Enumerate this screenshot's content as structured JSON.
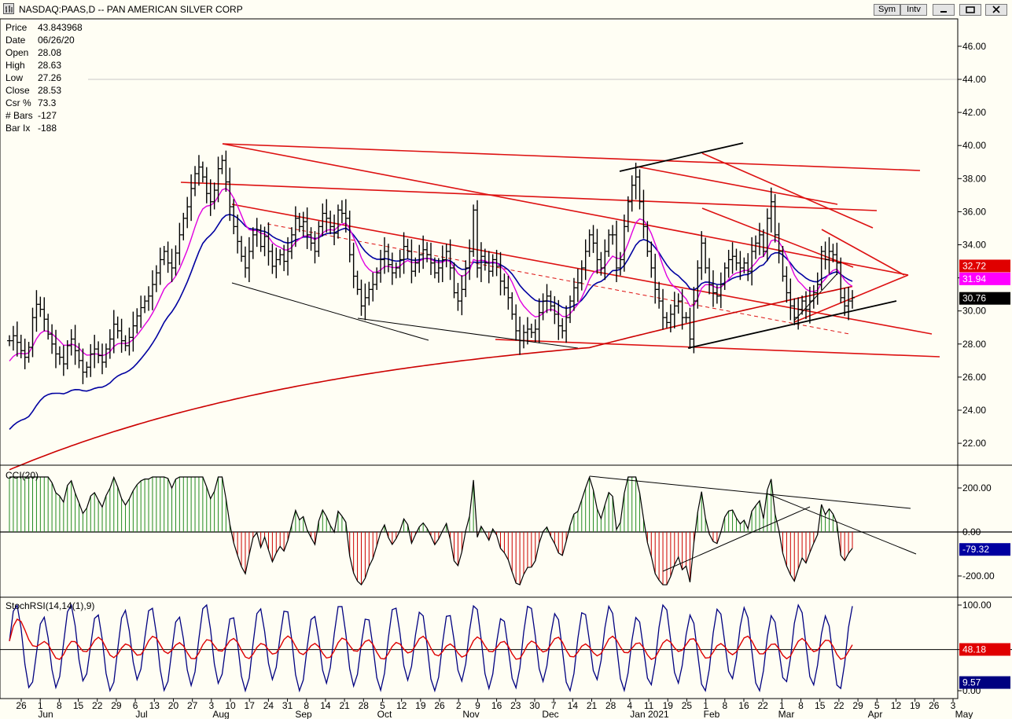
{
  "window": {
    "title": "NASDAQ:PAAS,D -- PAN AMERICAN SILVER CORP",
    "buttons": [
      "Sym",
      "Intv"
    ]
  },
  "info_panel": [
    {
      "label": "Price",
      "value": "43.843968"
    },
    {
      "label": "Date",
      "value": "06/26/20"
    },
    {
      "label": "Open",
      "value": "28.08"
    },
    {
      "label": "High",
      "value": "28.63"
    },
    {
      "label": "Low",
      "value": "27.26"
    },
    {
      "label": "Close",
      "value": "28.53"
    },
    {
      "label": "Csr %",
      "value": "73.3"
    },
    {
      "label": "# Bars",
      "value": "-127"
    },
    {
      "label": "Bar Ix",
      "value": "-188"
    }
  ],
  "colors": {
    "background": "#fffef4",
    "price_bars": "#000000",
    "ma_short": "#e000e0",
    "ma_mid": "#0000a0",
    "ma_long": "#cc0000",
    "trendline_red": "#dd1111",
    "cci_up": "#228b22",
    "cci_down": "#cc0000"
  },
  "chart_data": [
    {
      "type": "line",
      "name": "price",
      "title": "NASDAQ:PAAS,D -- PAN AMERICAN SILVER CORP",
      "ylim": [
        20.5,
        48
      ],
      "y_ticks": [
        "46.00",
        "44.00",
        "42.00",
        "40.00",
        "38.00",
        "36.00",
        "34.00",
        "32.00",
        "30.00",
        "28.00",
        "26.00",
        "24.00",
        "22.00"
      ],
      "value_badges": [
        {
          "label": "32.72",
          "value": 32.72,
          "color": "#e00000"
        },
        {
          "label": "31.94",
          "value": 31.94,
          "color": "#ff00ff"
        },
        {
          "label": "30.76",
          "value": 30.76,
          "color": "#000000"
        }
      ],
      "x_tick_labels": [
        "26",
        "1",
        "8",
        "15",
        "22",
        "29",
        "6",
        "13",
        "20",
        "27",
        "3",
        "10",
        "17",
        "24",
        "31",
        "8",
        "14",
        "21",
        "28",
        "5",
        "12",
        "19",
        "26",
        "2",
        "9",
        "16",
        "23",
        "30",
        "7",
        "14",
        "21",
        "28",
        "4",
        "11",
        "19",
        "25",
        "1",
        "8",
        "16",
        "22",
        "1",
        "8",
        "15",
        "22",
        "29",
        "5",
        "12",
        "19",
        "26",
        "3"
      ],
      "month_labels": [
        "Jun",
        "Jul",
        "Aug",
        "Sep",
        "Oct",
        "Nov",
        "Dec",
        "Jan 2021",
        "Feb",
        "Mar",
        "Apr",
        "May"
      ],
      "closes": [
        28.2,
        28.5,
        28.1,
        27.6,
        27.2,
        27.8,
        29.6,
        30.4,
        30.1,
        29.5,
        28.6,
        28.0,
        27.4,
        27.2,
        26.8,
        27.9,
        28.3,
        27.6,
        27.0,
        26.3,
        26.6,
        27.4,
        27.7,
        27.3,
        26.9,
        27.7,
        28.3,
        29.2,
        28.8,
        28.2,
        27.9,
        28.4,
        29.1,
        29.7,
        30.2,
        30.6,
        30.9,
        31.6,
        32.3,
        33.1,
        33.6,
        32.9,
        32.6,
        33.5,
        34.6,
        35.6,
        36.3,
        37.4,
        38.3,
        38.7,
        38.1,
        37.1,
        36.6,
        37.3,
        38.6,
        39.1,
        37.8,
        36.3,
        35.1,
        34.2,
        33.3,
        32.6,
        33.6,
        34.6,
        34.9,
        33.9,
        34.5,
        33.6,
        32.7,
        33.1,
        33.4,
        33.0,
        33.6,
        34.6,
        35.6,
        35.1,
        35.4,
        34.6,
        34.1,
        33.6,
        35.1,
        35.9,
        35.6,
        35.1,
        34.7,
        36.1,
        35.9,
        35.6,
        33.4,
        32.1,
        31.3,
        30.3,
        30.8,
        31.3,
        31.6,
        32.3,
        33.1,
        33.6,
        32.8,
        32.3,
        32.6,
        33.1,
        33.9,
        33.6,
        32.4,
        32.9,
        33.4,
        33.7,
        33.4,
        32.9,
        32.3,
        32.6,
        33.1,
        33.6,
        32.6,
        31.1,
        30.6,
        31.3,
        32.6,
        33.6,
        36.1,
        32.6,
        33.3,
        32.9,
        32.4,
        33.1,
        32.7,
        31.8,
        31.4,
        30.8,
        29.8,
        28.8,
        28.2,
        28.7,
        28.9,
        28.7,
        28.9,
        29.9,
        30.6,
        30.9,
        30.3,
        29.8,
        29.1,
        28.8,
        29.6,
        30.6,
        31.4,
        31.7,
        32.6,
        33.6,
        34.6,
        34.1,
        33.1,
        32.6,
        33.6,
        34.6,
        34.6,
        32.6,
        33.1,
        35.1,
        36.6,
        37.6,
        38.1,
        36.6,
        35.1,
        33.6,
        32.6,
        31.3,
        30.6,
        29.6,
        29.3,
        29.8,
        30.3,
        30.6,
        29.6,
        29.6,
        28.3,
        30.6,
        32.6,
        34.1,
        32.6,
        31.6,
        31.1,
        30.9,
        31.6,
        32.6,
        33.1,
        33.3,
        32.9,
        32.6,
        32.9,
        32.4,
        33.6,
        34.1,
        34.6,
        33.6,
        35.6,
        36.6,
        34.6,
        33.6,
        32.1,
        31.1,
        30.3,
        29.6,
        30.1,
        30.6,
        30.1,
        30.6,
        31.1,
        31.6,
        33.6,
        33.1,
        33.6,
        33.4,
        32.9,
        30.8,
        30.3,
        30.6,
        30.8
      ],
      "series_styles": {
        "ma_short_period": 10,
        "ma_mid_period": 20,
        "ma_long_period": 100
      }
    },
    {
      "type": "bar",
      "name": "CCI(20)",
      "title": "CCI(20)",
      "ylim": [
        -265,
        265
      ],
      "y_ticks": [
        "200.00",
        "0.00",
        "-200.00"
      ],
      "value_badges": [
        {
          "label": "-79.32",
          "value": -79.32,
          "color": "#0000a0"
        }
      ]
    },
    {
      "type": "line",
      "name": "StochRSI(14,14(1),9)",
      "title": "StochRSI(14,14(1),9)",
      "ylim": [
        -6,
        106
      ],
      "y_ticks": [
        "100.00",
        "0.00"
      ],
      "value_badges": [
        {
          "label": "48.18",
          "value": 48.18,
          "color": "#e00000"
        },
        {
          "label": "9.57",
          "value": 9.57,
          "color": "#000080"
        }
      ]
    }
  ]
}
